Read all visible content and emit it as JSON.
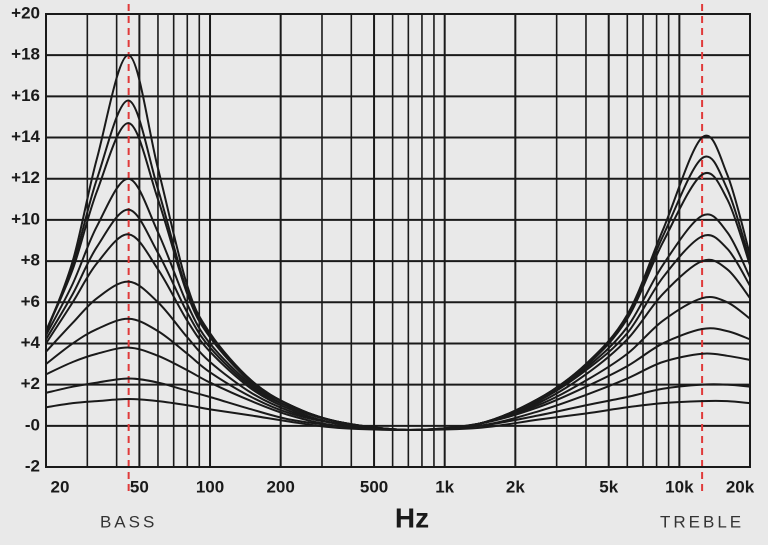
{
  "chart_data": {
    "type": "line",
    "xlabel": "Hz",
    "xscale": "log",
    "grid": true,
    "xlim": [
      20,
      20000
    ],
    "ylim": [
      -2,
      20
    ],
    "xticks": [
      20,
      50,
      100,
      200,
      500,
      {
        "value": 1000,
        "label": "1k"
      },
      {
        "value": 2000,
        "label": "2k"
      },
      {
        "value": 5000,
        "label": "5k"
      },
      {
        "value": 10000,
        "label": "10k"
      },
      {
        "value": 20000,
        "label": "20k"
      }
    ],
    "xminor": [
      30,
      40,
      60,
      70,
      80,
      90,
      300,
      400,
      600,
      700,
      800,
      900,
      3000,
      4000,
      6000,
      7000,
      8000,
      9000
    ],
    "yticks": [
      {
        "value": 20,
        "label": "+20"
      },
      {
        "value": 18,
        "label": "+18"
      },
      {
        "value": 16,
        "label": "+16"
      },
      {
        "value": 14,
        "label": "+14"
      },
      {
        "value": 12,
        "label": "+12"
      },
      {
        "value": 10,
        "label": "+10"
      },
      {
        "value": 8,
        "label": "+8"
      },
      {
        "value": 6,
        "label": "+6"
      },
      {
        "value": 4,
        "label": "+4"
      },
      {
        "value": 2,
        "label": "+2"
      },
      {
        "value": 0,
        "label": "-0"
      },
      {
        "value": -2,
        "label": "-2"
      }
    ],
    "markers": [
      {
        "label": "BASS",
        "x": 45,
        "color": "#e03a3a"
      },
      {
        "label": "TREBLE",
        "x": 12500,
        "color": "#e03a3a"
      }
    ],
    "x": [
      20,
      26,
      33,
      45,
      60,
      80,
      100,
      150,
      220,
      350,
      700,
      1400,
      2500,
      4000,
      6000,
      8500,
      12500,
      16000,
      20000
    ],
    "series": [
      {
        "color": "#1a1a1a",
        "values": [
          4.5,
          8,
          13,
          18,
          12.5,
          6.8,
          4.5,
          2.2,
          1.0,
          0.2,
          -0.2,
          0.1,
          1.3,
          3.0,
          5.4,
          9.5,
          14,
          12.2,
          8.3
        ]
      },
      {
        "color": "#1a1a1a",
        "values": [
          4.6,
          7.8,
          12,
          15.8,
          11.5,
          6.5,
          4.4,
          2.2,
          1.0,
          0.2,
          -0.2,
          0.1,
          1.3,
          3.0,
          5.3,
          9.2,
          13,
          11.5,
          8.0
        ]
      },
      {
        "color": "#1a1a1a",
        "values": [
          4.6,
          7.6,
          11.4,
          14.7,
          11,
          6.4,
          4.3,
          2.1,
          1.0,
          0.2,
          -0.2,
          0.1,
          1.3,
          2.9,
          5.2,
          8.9,
          12.2,
          11,
          7.8
        ]
      },
      {
        "color": "#1a1a1a",
        "values": [
          4.4,
          6.9,
          9.7,
          12,
          9.4,
          5.9,
          4.0,
          2.0,
          0.9,
          0.2,
          -0.2,
          0.1,
          1.2,
          2.8,
          4.8,
          7.8,
          10.2,
          9.4,
          7.2
        ]
      },
      {
        "color": "#1a1a1a",
        "values": [
          4.2,
          6.4,
          8.7,
          10.5,
          8.4,
          5.5,
          3.8,
          1.9,
          0.9,
          0.2,
          -0.2,
          0.1,
          1.2,
          2.7,
          4.5,
          7.2,
          9.2,
          8.6,
          6.8
        ]
      },
      {
        "color": "#1a1a1a",
        "values": [
          4.0,
          6.0,
          7.9,
          9.3,
          7.6,
          5.1,
          3.6,
          1.8,
          0.8,
          0.1,
          -0.2,
          0.1,
          1.1,
          2.5,
          4.2,
          6.4,
          8,
          7.6,
          6.2
        ]
      },
      {
        "color": "#1a1a1a",
        "values": [
          3.6,
          5.0,
          6.2,
          7,
          6.0,
          4.3,
          3.1,
          1.6,
          0.7,
          0.1,
          -0.2,
          0.1,
          1.0,
          2.2,
          3.5,
          5.1,
          6.2,
          6.0,
          5.2
        ]
      },
      {
        "color": "#1a1a1a",
        "values": [
          3.0,
          4.0,
          4.7,
          5.2,
          4.6,
          3.5,
          2.6,
          1.4,
          0.6,
          0.1,
          -0.2,
          0.1,
          0.9,
          1.9,
          2.9,
          4.0,
          4.7,
          4.6,
          4.2
        ]
      },
      {
        "color": "#1a1a1a",
        "values": [
          2.5,
          3.1,
          3.5,
          3.8,
          3.4,
          2.7,
          2.1,
          1.2,
          0.5,
          0.0,
          -0.2,
          0.0,
          0.7,
          1.5,
          2.3,
          3.1,
          3.5,
          3.4,
          3.2
        ]
      },
      {
        "color": "#1a1a1a",
        "values": [
          1.6,
          1.9,
          2.1,
          2.3,
          2.1,
          1.7,
          1.4,
          0.8,
          0.3,
          0.0,
          -0.2,
          0.0,
          0.5,
          1.0,
          1.4,
          1.8,
          2.0,
          2.0,
          1.9
        ]
      },
      {
        "color": "#1a1a1a",
        "values": [
          0.9,
          1.1,
          1.2,
          1.3,
          1.2,
          1.0,
          0.8,
          0.5,
          0.2,
          -0.1,
          -0.2,
          -0.1,
          0.3,
          0.6,
          0.9,
          1.1,
          1.2,
          1.2,
          1.1
        ]
      }
    ]
  }
}
